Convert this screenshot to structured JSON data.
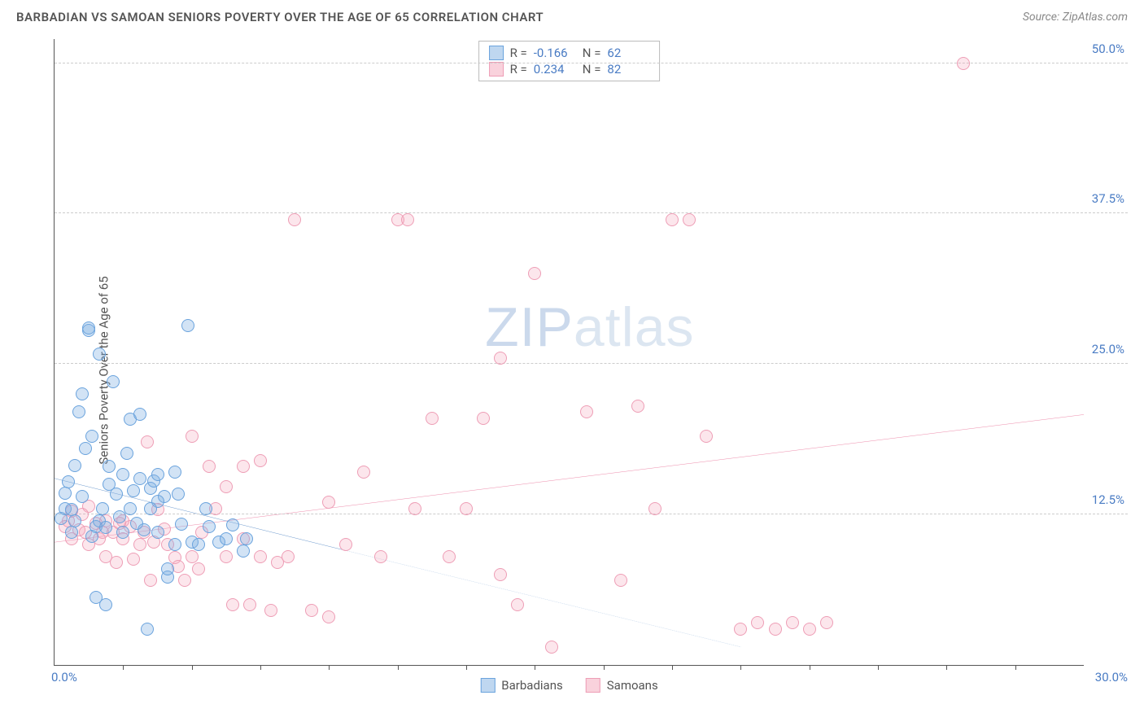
{
  "title": "BARBADIAN VS SAMOAN SENIORS POVERTY OVER THE AGE OF 65 CORRELATION CHART",
  "source": "Source: ZipAtlas.com",
  "ylabel": "Seniors Poverty Over the Age of 65",
  "watermark_bold": "ZIP",
  "watermark_thin": "atlas",
  "chart": {
    "type": "scatter",
    "xlim": [
      0,
      30
    ],
    "ylim": [
      0,
      52
    ],
    "x_tick_start_label": "0.0%",
    "x_tick_end_label": "30.0%",
    "x_minor_ticks": [
      2,
      4,
      6,
      8,
      10,
      12,
      14,
      16,
      18,
      20,
      22,
      24,
      26,
      28
    ],
    "y_ticks": [
      {
        "v": 12.5,
        "label": "12.5%"
      },
      {
        "v": 25.0,
        "label": "25.0%"
      },
      {
        "v": 37.5,
        "label": "37.5%"
      },
      {
        "v": 50.0,
        "label": "50.0%"
      }
    ],
    "background_color": "#ffffff",
    "grid_color": "#cccccc",
    "series": [
      {
        "name": "Barbadians",
        "color_fill": "rgba(127,175,226,0.35)",
        "color_stroke": "#6aa3dd",
        "trend_color": "#2f6fb8",
        "R": "-0.166",
        "N": "62",
        "trend": {
          "x1": 0,
          "y1": 15.5,
          "x2": 8.5,
          "y2": 9.5,
          "dash_x2": 20,
          "dash_y2": 1.5
        },
        "points": [
          [
            0.2,
            12.2
          ],
          [
            0.3,
            13.0
          ],
          [
            0.3,
            14.3
          ],
          [
            0.4,
            15.2
          ],
          [
            0.5,
            11.0
          ],
          [
            0.5,
            12.9
          ],
          [
            0.6,
            12.0
          ],
          [
            0.6,
            16.6
          ],
          [
            0.7,
            21.0
          ],
          [
            0.8,
            22.5
          ],
          [
            0.8,
            14.0
          ],
          [
            1.0,
            27.8
          ],
          [
            1.0,
            28.0
          ],
          [
            1.1,
            10.7
          ],
          [
            1.2,
            11.5
          ],
          [
            1.2,
            5.6
          ],
          [
            1.3,
            25.8
          ],
          [
            1.3,
            12.0
          ],
          [
            1.5,
            11.4
          ],
          [
            1.5,
            5.0
          ],
          [
            1.6,
            15.0
          ],
          [
            1.6,
            16.5
          ],
          [
            1.7,
            23.5
          ],
          [
            1.8,
            14.2
          ],
          [
            1.9,
            12.3
          ],
          [
            2.0,
            11.0
          ],
          [
            2.0,
            15.8
          ],
          [
            2.2,
            20.4
          ],
          [
            2.2,
            13.0
          ],
          [
            2.3,
            14.5
          ],
          [
            2.4,
            11.8
          ],
          [
            2.5,
            20.8
          ],
          [
            2.5,
            15.5
          ],
          [
            2.6,
            11.2
          ],
          [
            2.7,
            3.0
          ],
          [
            2.8,
            14.7
          ],
          [
            2.9,
            15.3
          ],
          [
            3.0,
            11.0
          ],
          [
            3.0,
            15.8
          ],
          [
            3.2,
            14.0
          ],
          [
            3.3,
            7.3
          ],
          [
            3.3,
            8.0
          ],
          [
            3.5,
            10.0
          ],
          [
            3.5,
            16.0
          ],
          [
            3.7,
            11.7
          ],
          [
            3.9,
            28.2
          ],
          [
            4.0,
            10.2
          ],
          [
            4.2,
            10.0
          ],
          [
            4.5,
            11.5
          ],
          [
            4.8,
            10.2
          ],
          [
            5.0,
            10.5
          ],
          [
            5.2,
            11.6
          ],
          [
            5.5,
            9.5
          ],
          [
            5.6,
            10.5
          ],
          [
            3.0,
            13.6
          ],
          [
            1.4,
            13.0
          ],
          [
            0.9,
            18.0
          ],
          [
            1.1,
            19.0
          ],
          [
            2.1,
            17.6
          ],
          [
            2.8,
            13.0
          ],
          [
            3.6,
            14.2
          ],
          [
            4.4,
            13.0
          ]
        ]
      },
      {
        "name": "Samoans",
        "color_fill": "rgba(244,166,186,0.28)",
        "color_stroke": "#ee9eb6",
        "trend_color": "#e55a87",
        "R": "0.234",
        "N": "82",
        "trend": {
          "x1": 0,
          "y1": 10.2,
          "x2": 30,
          "y2": 20.8
        },
        "points": [
          [
            0.3,
            11.5
          ],
          [
            0.4,
            12.0
          ],
          [
            0.5,
            10.5
          ],
          [
            0.5,
            12.8
          ],
          [
            0.7,
            11.2
          ],
          [
            0.8,
            12.5
          ],
          [
            0.9,
            11.0
          ],
          [
            1.0,
            10.0
          ],
          [
            1.0,
            13.2
          ],
          [
            1.2,
            11.8
          ],
          [
            1.3,
            10.5
          ],
          [
            1.4,
            11.0
          ],
          [
            1.5,
            12.0
          ],
          [
            1.5,
            9.0
          ],
          [
            1.7,
            11.0
          ],
          [
            1.8,
            8.5
          ],
          [
            1.9,
            11.8
          ],
          [
            2.0,
            10.5
          ],
          [
            2.0,
            12.0
          ],
          [
            2.2,
            11.5
          ],
          [
            2.3,
            8.8
          ],
          [
            2.5,
            10.0
          ],
          [
            2.6,
            11.0
          ],
          [
            2.7,
            18.5
          ],
          [
            2.8,
            7.0
          ],
          [
            2.9,
            10.2
          ],
          [
            3.0,
            12.9
          ],
          [
            3.2,
            11.3
          ],
          [
            3.3,
            10.0
          ],
          [
            3.5,
            8.9
          ],
          [
            3.6,
            8.2
          ],
          [
            3.8,
            7.0
          ],
          [
            4.0,
            9.0
          ],
          [
            4.0,
            19.0
          ],
          [
            4.2,
            8.0
          ],
          [
            4.5,
            16.5
          ],
          [
            4.7,
            13.0
          ],
          [
            5.0,
            9.0
          ],
          [
            5.0,
            14.8
          ],
          [
            5.2,
            5.0
          ],
          [
            5.5,
            10.5
          ],
          [
            5.7,
            5.0
          ],
          [
            6.0,
            9.0
          ],
          [
            6.0,
            17.0
          ],
          [
            6.3,
            4.5
          ],
          [
            6.5,
            8.5
          ],
          [
            6.8,
            9.0
          ],
          [
            7.0,
            37.0
          ],
          [
            7.5,
            4.5
          ],
          [
            8.0,
            13.5
          ],
          [
            8.0,
            4.0
          ],
          [
            8.5,
            10.0
          ],
          [
            9.0,
            16.0
          ],
          [
            9.5,
            9.0
          ],
          [
            10.0,
            37.0
          ],
          [
            10.3,
            37.0
          ],
          [
            10.5,
            13.0
          ],
          [
            11.0,
            20.5
          ],
          [
            11.5,
            9.0
          ],
          [
            12.0,
            13.0
          ],
          [
            12.5,
            20.5
          ],
          [
            13.0,
            25.5
          ],
          [
            13.0,
            7.5
          ],
          [
            13.5,
            5.0
          ],
          [
            14.0,
            32.5
          ],
          [
            15.5,
            21.0
          ],
          [
            16.5,
            7.0
          ],
          [
            17.0,
            21.5
          ],
          [
            17.5,
            13.0
          ],
          [
            18.0,
            37.0
          ],
          [
            18.5,
            37.0
          ],
          [
            19.0,
            19.0
          ],
          [
            20.0,
            3.0
          ],
          [
            20.5,
            3.5
          ],
          [
            21.0,
            3.0
          ],
          [
            21.5,
            3.5
          ],
          [
            22.0,
            3.0
          ],
          [
            22.5,
            3.5
          ],
          [
            5.5,
            16.5
          ],
          [
            4.3,
            11.0
          ],
          [
            26.5,
            50.0
          ],
          [
            14.5,
            1.5
          ]
        ]
      }
    ],
    "legend": [
      "Barbadians",
      "Samoans"
    ]
  }
}
